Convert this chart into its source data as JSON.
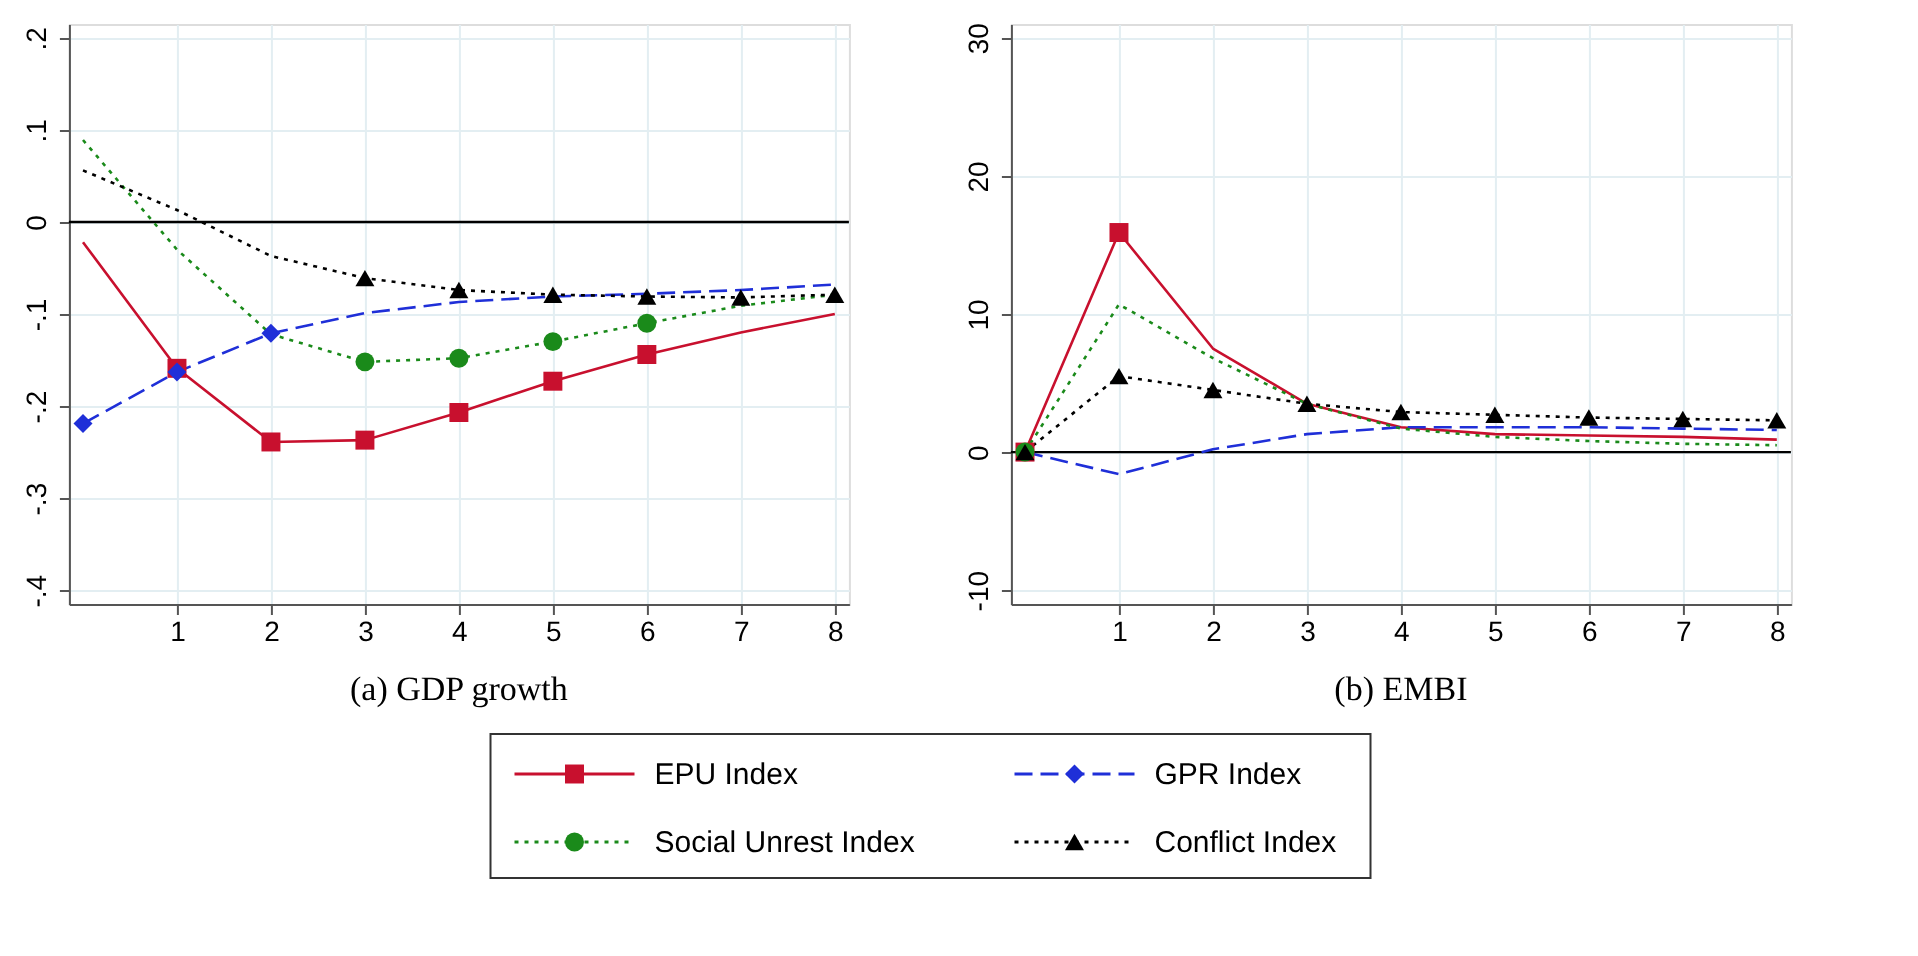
{
  "chart_data": [
    {
      "type": "line",
      "title": "(a) GDP growth",
      "x": [
        0,
        1,
        2,
        3,
        4,
        5,
        6,
        7,
        8
      ],
      "xlim": [
        -0.15,
        8.15
      ],
      "xticks": [
        1,
        2,
        3,
        4,
        5,
        6,
        7,
        8
      ],
      "ylim": [
        -0.415,
        0.215
      ],
      "yticks": [
        {
          "value": -0.4,
          "label": "-.4"
        },
        {
          "value": -0.3,
          "label": "-.3"
        },
        {
          "value": -0.2,
          "label": "-.2"
        },
        {
          "value": -0.1,
          "label": "-.1"
        },
        0,
        {
          "value": 0.1,
          "label": ".1"
        },
        {
          "value": 0.2,
          "label": ".2"
        }
      ],
      "grid": true,
      "legend": "bottom",
      "ref_lines": [
        {
          "axis": "y",
          "value": 0,
          "color": "#000000"
        }
      ],
      "series": [
        {
          "name": "EPU Index",
          "color": "#c8102e",
          "line_style": "solid",
          "marker": "none",
          "values": [
            -0.022,
            -0.159,
            -0.239,
            -0.237,
            -0.207,
            -0.173,
            -0.144,
            -0.12,
            -0.1
          ]
        },
        {
          "name": "GPR Index",
          "color": "#1f2fd8",
          "line_style": "dashed",
          "marker": "none",
          "values": [
            -0.219,
            -0.163,
            -0.121,
            -0.099,
            -0.087,
            -0.081,
            -0.078,
            -0.074,
            -0.068
          ]
        },
        {
          "name": "Social Unrest Index",
          "color": "#1a8a1a",
          "line_style": "dotted",
          "marker": "none",
          "values": [
            0.089,
            -0.03,
            -0.122,
            -0.152,
            -0.148,
            -0.13,
            -0.11,
            -0.091,
            -0.079
          ]
        },
        {
          "name": "Conflict Index",
          "color": "#000000",
          "line_style": "dotted",
          "marker": "none",
          "values": [
            0.056,
            0.013,
            -0.037,
            -0.061,
            -0.074,
            -0.079,
            -0.081,
            -0.082,
            -0.079
          ]
        },
        {
          "type": "scatter",
          "color": "#c8102e",
          "marker": "square",
          "values": [
            null,
            -0.159,
            -0.239,
            -0.237,
            -0.207,
            -0.173,
            -0.144,
            null,
            null
          ]
        },
        {
          "type": "scatter",
          "color": "#1f2fd8",
          "marker": "diamond",
          "values": [
            -0.219,
            -0.163,
            -0.121,
            null,
            null,
            null,
            null,
            null,
            null
          ]
        },
        {
          "type": "scatter",
          "color": "#1a8a1a",
          "marker": "circle",
          "values": [
            null,
            null,
            null,
            -0.152,
            -0.148,
            -0.13,
            -0.11,
            null,
            null
          ]
        },
        {
          "type": "scatter",
          "color": "#000000",
          "marker": "triangle",
          "values": [
            null,
            null,
            null,
            -0.061,
            -0.074,
            -0.079,
            -0.081,
            -0.082,
            -0.079
          ]
        }
      ]
    },
    {
      "type": "line",
      "title": "(b) EMBI",
      "x": [
        0,
        1,
        2,
        3,
        4,
        5,
        6,
        7,
        8
      ],
      "xlim": [
        -0.15,
        8.15
      ],
      "xticks": [
        1,
        2,
        3,
        4,
        5,
        6,
        7,
        8
      ],
      "ylim": [
        -11,
        31
      ],
      "yticks": [
        -10,
        0,
        10,
        20,
        30
      ],
      "grid": true,
      "ref_lines": [
        {
          "axis": "y",
          "value": 0,
          "color": "#000000"
        }
      ],
      "series": [
        {
          "color": "#c8102e",
          "line_style": "solid",
          "marker": "none",
          "values": [
            0,
            15.9,
            7.5,
            3.5,
            1.8,
            1.3,
            1.2,
            1.1,
            0.9
          ]
        },
        {
          "color": "#1f2fd8",
          "line_style": "dashed",
          "marker": "none",
          "values": [
            0,
            -1.6,
            0.2,
            1.3,
            1.8,
            1.8,
            1.8,
            1.7,
            1.6
          ]
        },
        {
          "color": "#1a8a1a",
          "line_style": "dotted",
          "marker": "none",
          "values": [
            0,
            10.7,
            6.8,
            3.5,
            1.7,
            1.1,
            0.8,
            0.6,
            0.5
          ]
        },
        {
          "color": "#000000",
          "line_style": "dotted",
          "marker": "none",
          "values": [
            0,
            5.5,
            4.5,
            3.5,
            2.9,
            2.7,
            2.5,
            2.4,
            2.3
          ]
        },
        {
          "type": "scatter",
          "color": "#c8102e",
          "marker": "square",
          "values": [
            0,
            15.9,
            null,
            null,
            null,
            null,
            null,
            null,
            null
          ]
        },
        {
          "type": "scatter",
          "color": "#1f2fd8",
          "marker": "diamond",
          "values": [
            null,
            null,
            null,
            null,
            null,
            null,
            null,
            null,
            null
          ]
        },
        {
          "type": "scatter",
          "color": "#1a8a1a",
          "marker": "circle",
          "values": [
            0,
            null,
            null,
            null,
            null,
            null,
            null,
            null,
            null
          ]
        },
        {
          "type": "scatter",
          "color": "#000000",
          "marker": "triangle",
          "values": [
            0,
            5.5,
            4.5,
            3.5,
            2.9,
            2.7,
            2.5,
            2.4,
            2.3
          ]
        }
      ]
    }
  ]
}
